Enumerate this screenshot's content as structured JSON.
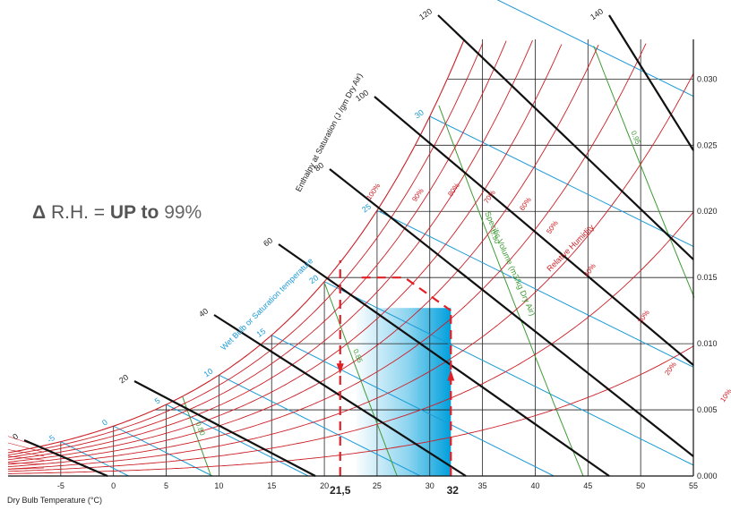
{
  "annotation": {
    "delta": "Δ",
    "rh": "R.H. =",
    "up_to": "UP to",
    "pct": "99%"
  },
  "chart_data": {
    "type": "line",
    "title": "",
    "xlabel": "Dry Bulb Temperature (°C)",
    "ylabel": "",
    "xlim": [
      -10,
      55
    ],
    "ylim": [
      0,
      0.033
    ],
    "x_ticks": [
      "-5",
      "0",
      "5",
      "10",
      "15",
      "20",
      "25",
      "30",
      "35",
      "40",
      "45",
      "50",
      "55"
    ],
    "y_ticks": [
      "0.000",
      "0.005",
      "0.010",
      "0.015",
      "0.020",
      "0.025",
      "0.030"
    ],
    "y_tick_values": [
      0,
      0.005,
      0.01,
      0.015,
      0.02,
      0.025,
      0.03
    ],
    "grid": true,
    "relative_humidity": {
      "label": "Relative Humidity",
      "levels": [
        10,
        20,
        30,
        40,
        50,
        60,
        70,
        80,
        90,
        100
      ],
      "labels": [
        "100%",
        "90%",
        "80%",
        "70%",
        "60%",
        "50%",
        "40%",
        "30%",
        "20%",
        "10%",
        "0%"
      ],
      "color": "#cc1f26"
    },
    "enthalpy": {
      "label": "Enthalpy at Saturation (J /gm Dry Air)",
      "values": [
        0,
        20,
        40,
        60,
        80,
        100,
        120,
        140
      ],
      "labels": [
        "0",
        "20",
        "40",
        "60",
        "80",
        "100",
        "120",
        "140"
      ],
      "color": "#111111"
    },
    "wet_bulb": {
      "label": "Wet Bulb or Saturation temperature",
      "values": [
        -5,
        0,
        5,
        10,
        15,
        20,
        25,
        30,
        35
      ],
      "labels": [
        "-5",
        "0",
        "5",
        "10",
        "15",
        "20",
        "25",
        "30",
        "35"
      ],
      "color": "#1a9ad6"
    },
    "specific_volume": {
      "label": "Specific Volume (m3/kg Dry Air)",
      "values": [
        0.8,
        0.85,
        0.9,
        0.95
      ],
      "labels": [
        "0.80",
        "0.85",
        "0.90",
        "0.95"
      ],
      "color": "#3f9b35"
    },
    "process": {
      "start_db": 21.5,
      "end_db": 32,
      "start_label": "21,5",
      "end_label": "32",
      "color": "#e01f26",
      "fill_color": "#00a0dc"
    }
  }
}
